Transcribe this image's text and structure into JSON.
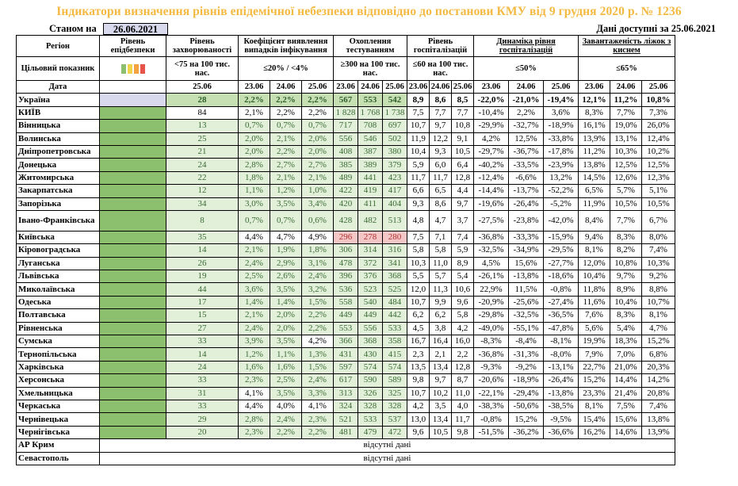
{
  "title": "Індикатори визначення рівнів епідемічної небезпеки відповідно до постанови КМУ від 9 грудня 2020 р. № 1236",
  "as_of_label": "Станом на",
  "as_of_date": "26.06.2021",
  "available_label": "Дані доступні за 25.06.2021",
  "headers": {
    "region": "Регіон",
    "level": "Рівень епідбезпеки",
    "morbidity": "Рівень захворюваності",
    "detection": "Коефіцієнт виявлення випадків інфікування",
    "coverage": "Охоплення тестуванням",
    "hosp": "Рівень госпіталізацій",
    "dynamics": "Динаміка рівня госпіталізацій",
    "beds": "Завантаженість ліжок з киснем"
  },
  "target_row": {
    "label": "Цільовий показник",
    "morbidity": "<75 на 100 тис. нас.",
    "detection": "≤20% / <4%",
    "coverage": "≥300 на 100 тис. нас.",
    "hosp": "≤60 на 100 тис. нас.",
    "dynamics": "≤50%",
    "beds": "≤65%"
  },
  "level_colors": [
    "#8cbf6e",
    "#f2d44c",
    "#f4a340",
    "#e8544c"
  ],
  "date_row": {
    "label": "Дата",
    "morbidity": "25.06",
    "dates": [
      "23.06",
      "24.06",
      "25.06"
    ]
  },
  "rows": [
    {
      "region": "Україна",
      "m": "28",
      "d": [
        "2,2%",
        "2,2%",
        "2,2%"
      ],
      "c": [
        "567",
        "553",
        "542"
      ],
      "h": [
        "8,9",
        "8,6",
        "8,5"
      ],
      "dy": [
        "-22,0%",
        "-21,0%",
        "-19,4%"
      ],
      "b": [
        "12,1%",
        "11,2%",
        "10,8%"
      ]
    },
    {
      "region": "КИЇВ",
      "m": "84",
      "d": [
        "2,1%",
        "2,2%",
        "2,2%"
      ],
      "c": [
        "1 828",
        "1 768",
        "1 738"
      ],
      "h": [
        "7,5",
        "7,7",
        "7,7"
      ],
      "dy": [
        "-10,4%",
        "2,2%",
        "3,6%"
      ],
      "b": [
        "8,3%",
        "7,7%",
        "7,3%"
      ]
    },
    {
      "region": "Вінницька",
      "m": "13",
      "d": [
        "0,7%",
        "0,7%",
        "0,7%"
      ],
      "c": [
        "717",
        "708",
        "697"
      ],
      "h": [
        "10,7",
        "9,7",
        "10,8"
      ],
      "dy": [
        "-29,9%",
        "-32,7%",
        "-18,9%"
      ],
      "b": [
        "16,1%",
        "19,0%",
        "26,0%"
      ]
    },
    {
      "region": "Волинська",
      "m": "25",
      "d": [
        "2,0%",
        "2,1%",
        "2,0%"
      ],
      "c": [
        "556",
        "546",
        "502"
      ],
      "h": [
        "11,9",
        "12,2",
        "9,1"
      ],
      "dy": [
        "4,2%",
        "12,5%",
        "-33,8%"
      ],
      "b": [
        "13,9%",
        "13,1%",
        "12,4%"
      ]
    },
    {
      "region": "Дніпропетровська",
      "m": "21",
      "d": [
        "2,0%",
        "2,2%",
        "2,0%"
      ],
      "c": [
        "408",
        "387",
        "380"
      ],
      "h": [
        "10,4",
        "9,3",
        "10,5"
      ],
      "dy": [
        "-29,7%",
        "-36,7%",
        "-17,8%"
      ],
      "b": [
        "11,2%",
        "10,3%",
        "10,2%"
      ]
    },
    {
      "region": "Донецька",
      "m": "24",
      "d": [
        "2,8%",
        "2,7%",
        "2,7%"
      ],
      "c": [
        "385",
        "389",
        "379"
      ],
      "h": [
        "5,9",
        "6,0",
        "6,4"
      ],
      "dy": [
        "-40,2%",
        "-33,5%",
        "-23,9%"
      ],
      "b": [
        "13,8%",
        "12,5%",
        "12,5%"
      ]
    },
    {
      "region": "Житомирська",
      "m": "22",
      "d": [
        "1,8%",
        "2,1%",
        "2,1%"
      ],
      "c": [
        "489",
        "441",
        "423"
      ],
      "h": [
        "11,7",
        "11,7",
        "12,8"
      ],
      "dy": [
        "-12,4%",
        "-6,6%",
        "13,2%"
      ],
      "b": [
        "14,5%",
        "12,6%",
        "12,3%"
      ]
    },
    {
      "region": "Закарпатська",
      "m": "12",
      "d": [
        "1,1%",
        "1,2%",
        "1,0%"
      ],
      "c": [
        "422",
        "419",
        "417"
      ],
      "h": [
        "6,6",
        "6,5",
        "4,4"
      ],
      "dy": [
        "-14,4%",
        "-13,7%",
        "-52,2%"
      ],
      "b": [
        "6,5%",
        "5,7%",
        "5,1%"
      ]
    },
    {
      "region": "Запорізька",
      "m": "34",
      "d": [
        "3,0%",
        "3,5%",
        "3,4%"
      ],
      "c": [
        "420",
        "411",
        "404"
      ],
      "h": [
        "9,3",
        "8,6",
        "9,7"
      ],
      "dy": [
        "-19,6%",
        "-26,4%",
        "-5,2%"
      ],
      "b": [
        "11,9%",
        "10,5%",
        "10,5%"
      ]
    },
    {
      "region": "Івано-Франківська",
      "m": "8",
      "d": [
        "0,7%",
        "0,7%",
        "0,6%"
      ],
      "c": [
        "428",
        "482",
        "513"
      ],
      "h": [
        "4,8",
        "4,7",
        "3,7"
      ],
      "dy": [
        "-27,5%",
        "-23,8%",
        "-42,0%"
      ],
      "b": [
        "8,4%",
        "7,7%",
        "6,7%"
      ]
    },
    {
      "region": "Київська",
      "m": "35",
      "d": [
        "4,4%",
        "4,7%",
        "4,9%"
      ],
      "c": [
        "296",
        "278",
        "280"
      ],
      "h": [
        "7,5",
        "7,1",
        "7,4"
      ],
      "dy": [
        "-36,8%",
        "-33,3%",
        "-15,9%"
      ],
      "b": [
        "9,4%",
        "8,3%",
        "8,0%"
      ]
    },
    {
      "region": "Кіровоградська",
      "m": "14",
      "d": [
        "2,1%",
        "1,9%",
        "1,8%"
      ],
      "c": [
        "306",
        "314",
        "316"
      ],
      "h": [
        "5,8",
        "5,8",
        "5,9"
      ],
      "dy": [
        "-32,5%",
        "-34,9%",
        "-29,5%"
      ],
      "b": [
        "8,1%",
        "8,2%",
        "7,4%"
      ]
    },
    {
      "region": "Луганська",
      "m": "26",
      "d": [
        "2,4%",
        "2,9%",
        "3,1%"
      ],
      "c": [
        "478",
        "372",
        "341"
      ],
      "h": [
        "10,3",
        "11,0",
        "8,9"
      ],
      "dy": [
        "4,5%",
        "15,6%",
        "-27,7%"
      ],
      "b": [
        "12,0%",
        "10,8%",
        "10,3%"
      ]
    },
    {
      "region": "Львівська",
      "m": "19",
      "d": [
        "2,5%",
        "2,6%",
        "2,4%"
      ],
      "c": [
        "396",
        "376",
        "368"
      ],
      "h": [
        "5,5",
        "5,7",
        "5,4"
      ],
      "dy": [
        "-26,1%",
        "-13,8%",
        "-18,6%"
      ],
      "b": [
        "10,4%",
        "9,7%",
        "9,2%"
      ]
    },
    {
      "region": "Миколаївська",
      "m": "44",
      "d": [
        "3,6%",
        "3,5%",
        "3,2%"
      ],
      "c": [
        "536",
        "523",
        "525"
      ],
      "h": [
        "12,0",
        "11,3",
        "10,6"
      ],
      "dy": [
        "22,9%",
        "11,5%",
        "-0,8%"
      ],
      "b": [
        "11,8%",
        "8,9%",
        "8,8%"
      ]
    },
    {
      "region": "Одеська",
      "m": "17",
      "d": [
        "1,4%",
        "1,4%",
        "1,5%"
      ],
      "c": [
        "558",
        "540",
        "484"
      ],
      "h": [
        "10,7",
        "9,9",
        "9,6"
      ],
      "dy": [
        "-20,9%",
        "-25,6%",
        "-27,4%"
      ],
      "b": [
        "11,6%",
        "10,4%",
        "10,7%"
      ]
    },
    {
      "region": "Полтавська",
      "m": "15",
      "d": [
        "2,1%",
        "2,0%",
        "2,2%"
      ],
      "c": [
        "449",
        "449",
        "442"
      ],
      "h": [
        "6,2",
        "6,2",
        "5,8"
      ],
      "dy": [
        "-29,8%",
        "-32,5%",
        "-36,5%"
      ],
      "b": [
        "7,6%",
        "8,3%",
        "8,1%"
      ]
    },
    {
      "region": "Рівненська",
      "m": "27",
      "d": [
        "2,4%",
        "2,0%",
        "2,2%"
      ],
      "c": [
        "553",
        "556",
        "533"
      ],
      "h": [
        "4,5",
        "3,8",
        "4,2"
      ],
      "dy": [
        "-49,0%",
        "-55,1%",
        "-47,8%"
      ],
      "b": [
        "5,6%",
        "5,4%",
        "4,7%"
      ]
    },
    {
      "region": "Сумська",
      "m": "33",
      "d": [
        "3,9%",
        "3,5%",
        "4,2%"
      ],
      "c": [
        "366",
        "368",
        "358"
      ],
      "h": [
        "16,7",
        "16,4",
        "16,0"
      ],
      "dy": [
        "-8,3%",
        "-8,4%",
        "-8,1%"
      ],
      "b": [
        "19,9%",
        "18,3%",
        "15,2%"
      ]
    },
    {
      "region": "Тернопільська",
      "m": "14",
      "d": [
        "1,2%",
        "1,1%",
        "1,3%"
      ],
      "c": [
        "431",
        "430",
        "415"
      ],
      "h": [
        "2,3",
        "2,1",
        "2,2"
      ],
      "dy": [
        "-36,8%",
        "-31,3%",
        "-8,0%"
      ],
      "b": [
        "7,9%",
        "7,0%",
        "6,8%"
      ]
    },
    {
      "region": "Харківська",
      "m": "24",
      "d": [
        "1,6%",
        "1,6%",
        "1,5%"
      ],
      "c": [
        "597",
        "574",
        "574"
      ],
      "h": [
        "13,5",
        "13,4",
        "12,8"
      ],
      "dy": [
        "-9,3%",
        "-9,2%",
        "-13,1%"
      ],
      "b": [
        "22,7%",
        "21,0%",
        "20,3%"
      ]
    },
    {
      "region": "Херсонська",
      "m": "33",
      "d": [
        "2,3%",
        "2,5%",
        "2,4%"
      ],
      "c": [
        "617",
        "590",
        "589"
      ],
      "h": [
        "9,8",
        "9,7",
        "8,7"
      ],
      "dy": [
        "-20,6%",
        "-18,9%",
        "-26,4%"
      ],
      "b": [
        "15,2%",
        "14,4%",
        "14,2%"
      ]
    },
    {
      "region": "Хмельницька",
      "m": "31",
      "d": [
        "4,1%",
        "3,5%",
        "3,3%"
      ],
      "c": [
        "313",
        "326",
        "325"
      ],
      "h": [
        "10,7",
        "10,2",
        "11,0"
      ],
      "dy": [
        "-22,1%",
        "-29,4%",
        "-13,8%"
      ],
      "b": [
        "23,3%",
        "21,4%",
        "20,8%"
      ]
    },
    {
      "region": "Черкаська",
      "m": "33",
      "d": [
        "4,4%",
        "4,0%",
        "4,1%"
      ],
      "c": [
        "324",
        "328",
        "328"
      ],
      "h": [
        "4,2",
        "3,5",
        "4,0"
      ],
      "dy": [
        "-38,3%",
        "-50,6%",
        "-38,5%"
      ],
      "b": [
        "8,1%",
        "7,5%",
        "7,4%"
      ]
    },
    {
      "region": "Чернівецька",
      "m": "29",
      "d": [
        "2,8%",
        "2,4%",
        "2,3%"
      ],
      "c": [
        "521",
        "533",
        "537"
      ],
      "h": [
        "13,0",
        "13,4",
        "11,7"
      ],
      "dy": [
        "-0,8%",
        "15,2%",
        "-9,5%"
      ],
      "b": [
        "15,4%",
        "15,6%",
        "13,8%"
      ]
    },
    {
      "region": "Чернігівська",
      "m": "20",
      "d": [
        "2,3%",
        "2,2%",
        "2,2%"
      ],
      "c": [
        "481",
        "479",
        "472"
      ],
      "h": [
        "9,6",
        "10,5",
        "9,8"
      ],
      "dy": [
        "-51,5%",
        "-36,2%",
        "-36,6%"
      ],
      "b": [
        "16,2%",
        "14,6%",
        "13,9%"
      ]
    }
  ],
  "nodata_rows": [
    {
      "region": "АР Крим",
      "text": "відсутні дані"
    },
    {
      "region": "Севастополь",
      "text": "відсутні дані"
    }
  ]
}
